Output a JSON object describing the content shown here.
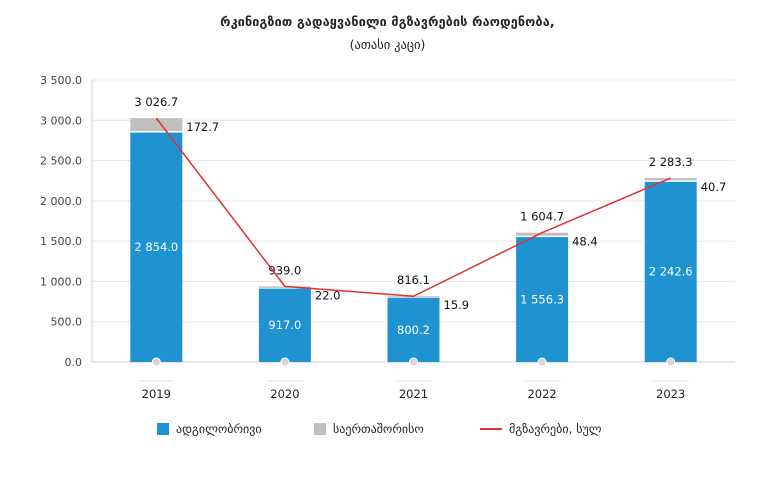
{
  "chart_data": {
    "type": "bar",
    "title": "რკინიგზით გადაყვანილი მგზავრების რაოდენობა,",
    "subtitle": "(ათასი კაცი)",
    "categories": [
      "2019",
      "2020",
      "2021",
      "2022",
      "2023"
    ],
    "stacked": true,
    "series": [
      {
        "name": "ადგილობრივი",
        "type": "bar",
        "color": "#1f93d2",
        "values": [
          2854.0,
          917.0,
          800.2,
          1556.3,
          2242.6
        ],
        "labels": [
          "2 854.0",
          "917.0",
          "800.2",
          "1 556.3",
          "2 242.6"
        ]
      },
      {
        "name": "საერთაშორისო",
        "type": "bar",
        "color": "#bfbfbf",
        "values": [
          172.7,
          22.0,
          15.9,
          48.4,
          40.7
        ],
        "labels": [
          "172.7",
          "22.0",
          "15.9",
          "48.4",
          "40.7"
        ]
      },
      {
        "name": "მგზავრები, სულ",
        "type": "line",
        "color": "#e03131",
        "values": [
          3026.7,
          939.0,
          816.1,
          1604.7,
          2283.3
        ],
        "labels": [
          "3 026.7",
          "939.0",
          "816.1",
          "1 604.7",
          "2 283.3"
        ]
      }
    ],
    "yticks": [
      "0.0",
      "500.0",
      "1 000.0",
      "1 500.0",
      "2 000.0",
      "2 500.0",
      "3 000.0",
      "3 500.0"
    ],
    "ylim": [
      0,
      3500
    ],
    "grid": true,
    "legend_position": "bottom"
  }
}
